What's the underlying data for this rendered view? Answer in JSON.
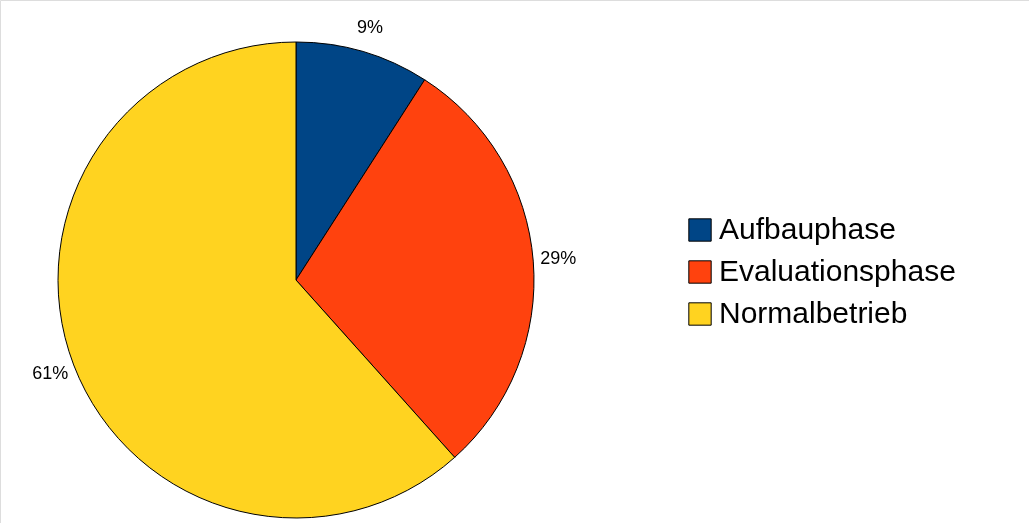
{
  "chart_data": {
    "type": "pie",
    "categories": [
      "Aufbauphase",
      "Evaluationsphase",
      "Normalbetrieb"
    ],
    "values": [
      9,
      29,
      61
    ],
    "colors": [
      "#004586",
      "#ff420e",
      "#ffd320"
    ],
    "value_labels": [
      "9%",
      "29%",
      "61%"
    ],
    "legend": "right"
  }
}
